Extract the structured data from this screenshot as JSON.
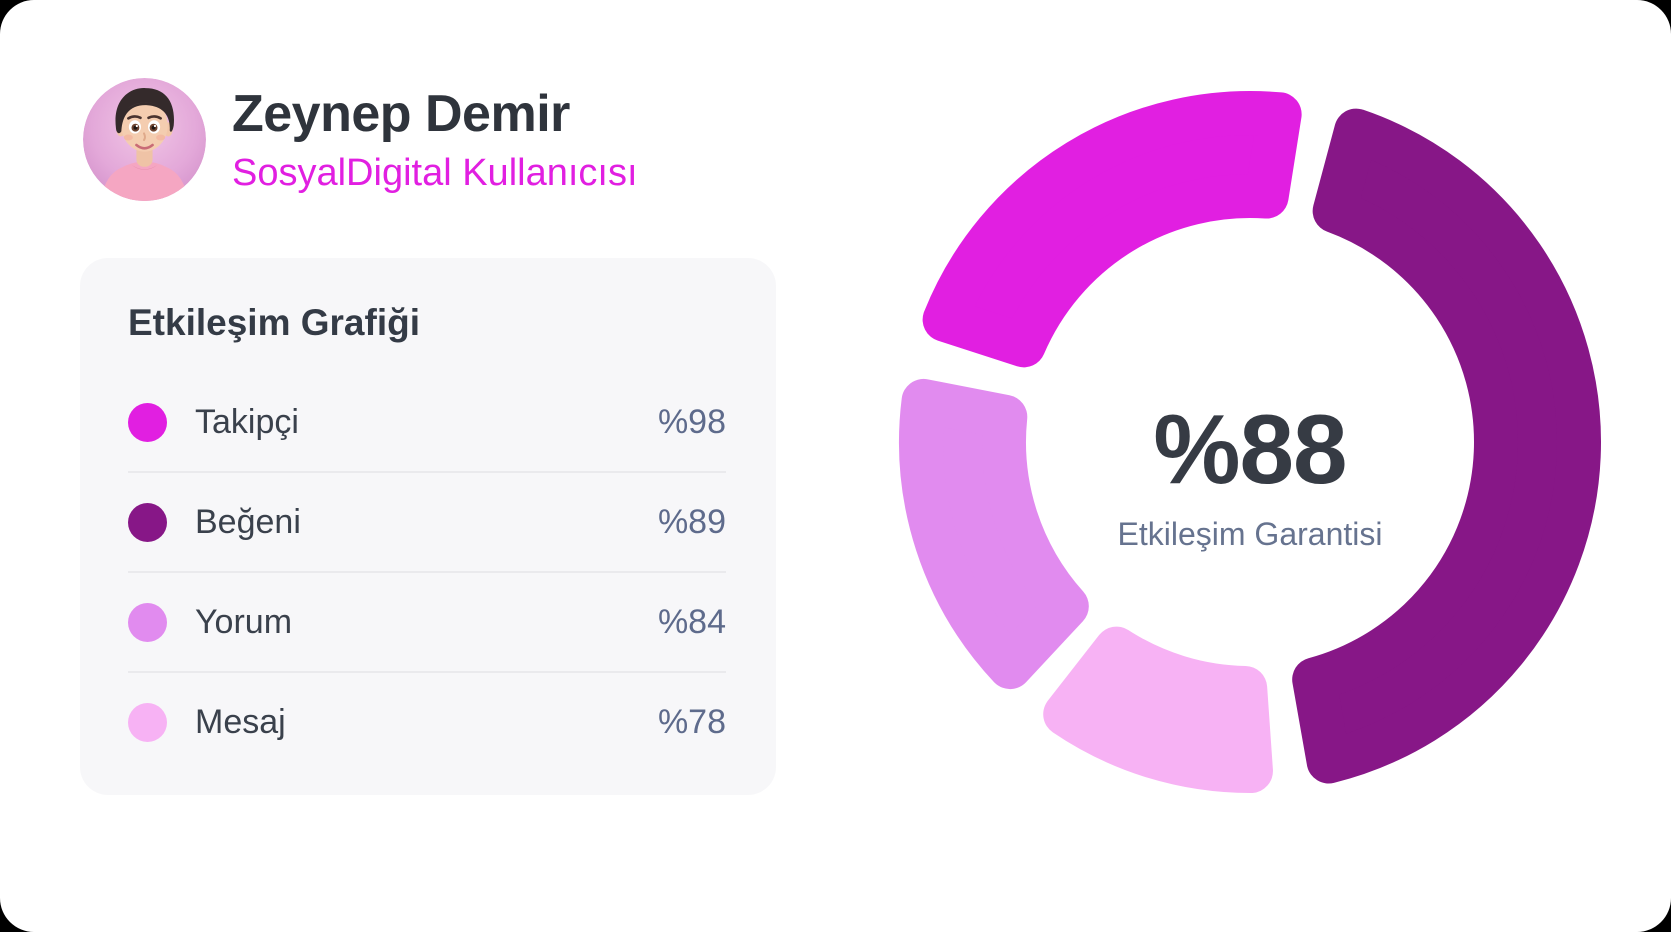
{
  "window": {
    "background": "#000000",
    "surface": "#FFFFFF"
  },
  "profile": {
    "name": "Zeynep Demir",
    "subtitle": "SosyalDigital Kullanıcısı",
    "name_color": "#2F343C",
    "subtitle_color": "#E11FE1"
  },
  "engagement_card": {
    "title": "Etkileşim Grafiği",
    "background": "#F7F7F9",
    "label_color": "#3A414C",
    "value_color": "#5E6B8C",
    "rows": [
      {
        "label": "Takipçi",
        "value": "%98",
        "color": "#E11FE1"
      },
      {
        "label": "Beğeni",
        "value": "%89",
        "color": "#871787"
      },
      {
        "label": "Yorum",
        "value": "%84",
        "color": "#E18BEF"
      },
      {
        "label": "Mesaj",
        "value": "%78",
        "color": "#F7B2F4"
      }
    ]
  },
  "donut_center": {
    "value": "%88",
    "label": "Etkileşim Garantisi",
    "value_color": "#363B44",
    "label_color": "#66738F"
  },
  "chart_data": {
    "type": "pie",
    "variant": "donut",
    "title": "Etkileşim Grafiği",
    "categories": [
      "Takipçi",
      "Beğeni",
      "Yorum",
      "Mesaj"
    ],
    "values": [
      98,
      89,
      84,
      78
    ],
    "value_prefix": "%",
    "center_value": "%88",
    "center_label": "Etkileşim Garantisi",
    "colors": [
      "#E11FE1",
      "#871787",
      "#E18BEF",
      "#F7B2F4"
    ],
    "legend_position": "left card list",
    "geometry": {
      "outer_radius": 351,
      "inner_radius": 224,
      "corner_radius": 22
    },
    "segments": [
      {
        "id": "takipci",
        "label": "Takipçi",
        "color": "#E11FE1",
        "start_deg": 288,
        "end_deg": 369
      },
      {
        "id": "begeni",
        "label": "Beğeni",
        "color": "#871787",
        "start_deg": 15,
        "end_deg": 170
      },
      {
        "id": "mesaj",
        "label": "Mesaj",
        "color": "#F7B2F4",
        "start_deg": 176,
        "end_deg": 218
      },
      {
        "id": "yorum",
        "label": "Yorum",
        "color": "#E18BEF",
        "start_deg": 223,
        "end_deg": 281
      }
    ]
  }
}
